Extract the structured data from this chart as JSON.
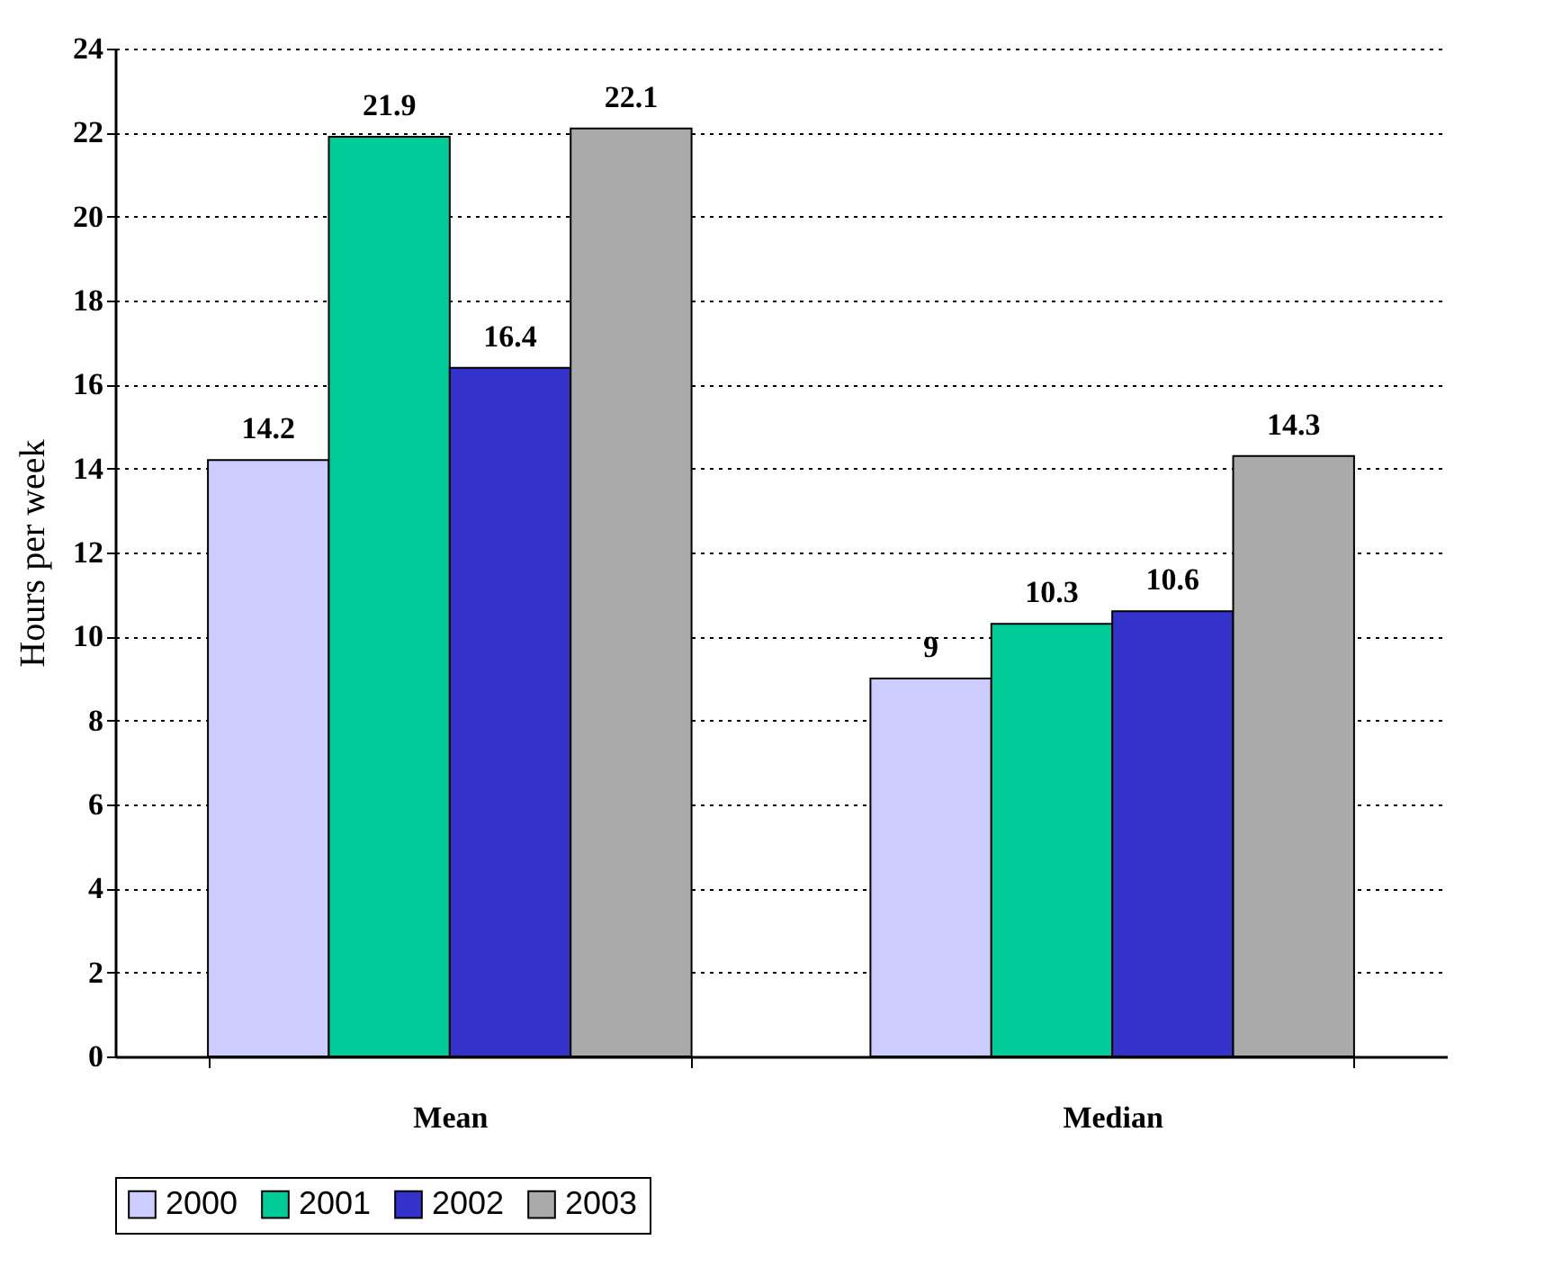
{
  "chart_data": {
    "type": "bar",
    "ylabel": "Hours per week",
    "categories": [
      "Mean",
      "Median"
    ],
    "series": [
      {
        "name": "2000",
        "color": "#ccccff",
        "values": [
          14.2,
          9
        ]
      },
      {
        "name": "2001",
        "color": "#00cc99",
        "values": [
          21.9,
          10.3
        ]
      },
      {
        "name": "2002",
        "color": "#3333cc",
        "values": [
          16.4,
          10.6
        ]
      },
      {
        "name": "2003",
        "color": "#aaaaaa",
        "values": [
          22.1,
          14.3
        ]
      }
    ],
    "ylim": [
      0,
      24
    ],
    "yticks": [
      0,
      2,
      4,
      6,
      8,
      10,
      12,
      14,
      16,
      18,
      20,
      22,
      24
    ],
    "grid": "y",
    "legend": "bottom",
    "data_labels": true
  }
}
